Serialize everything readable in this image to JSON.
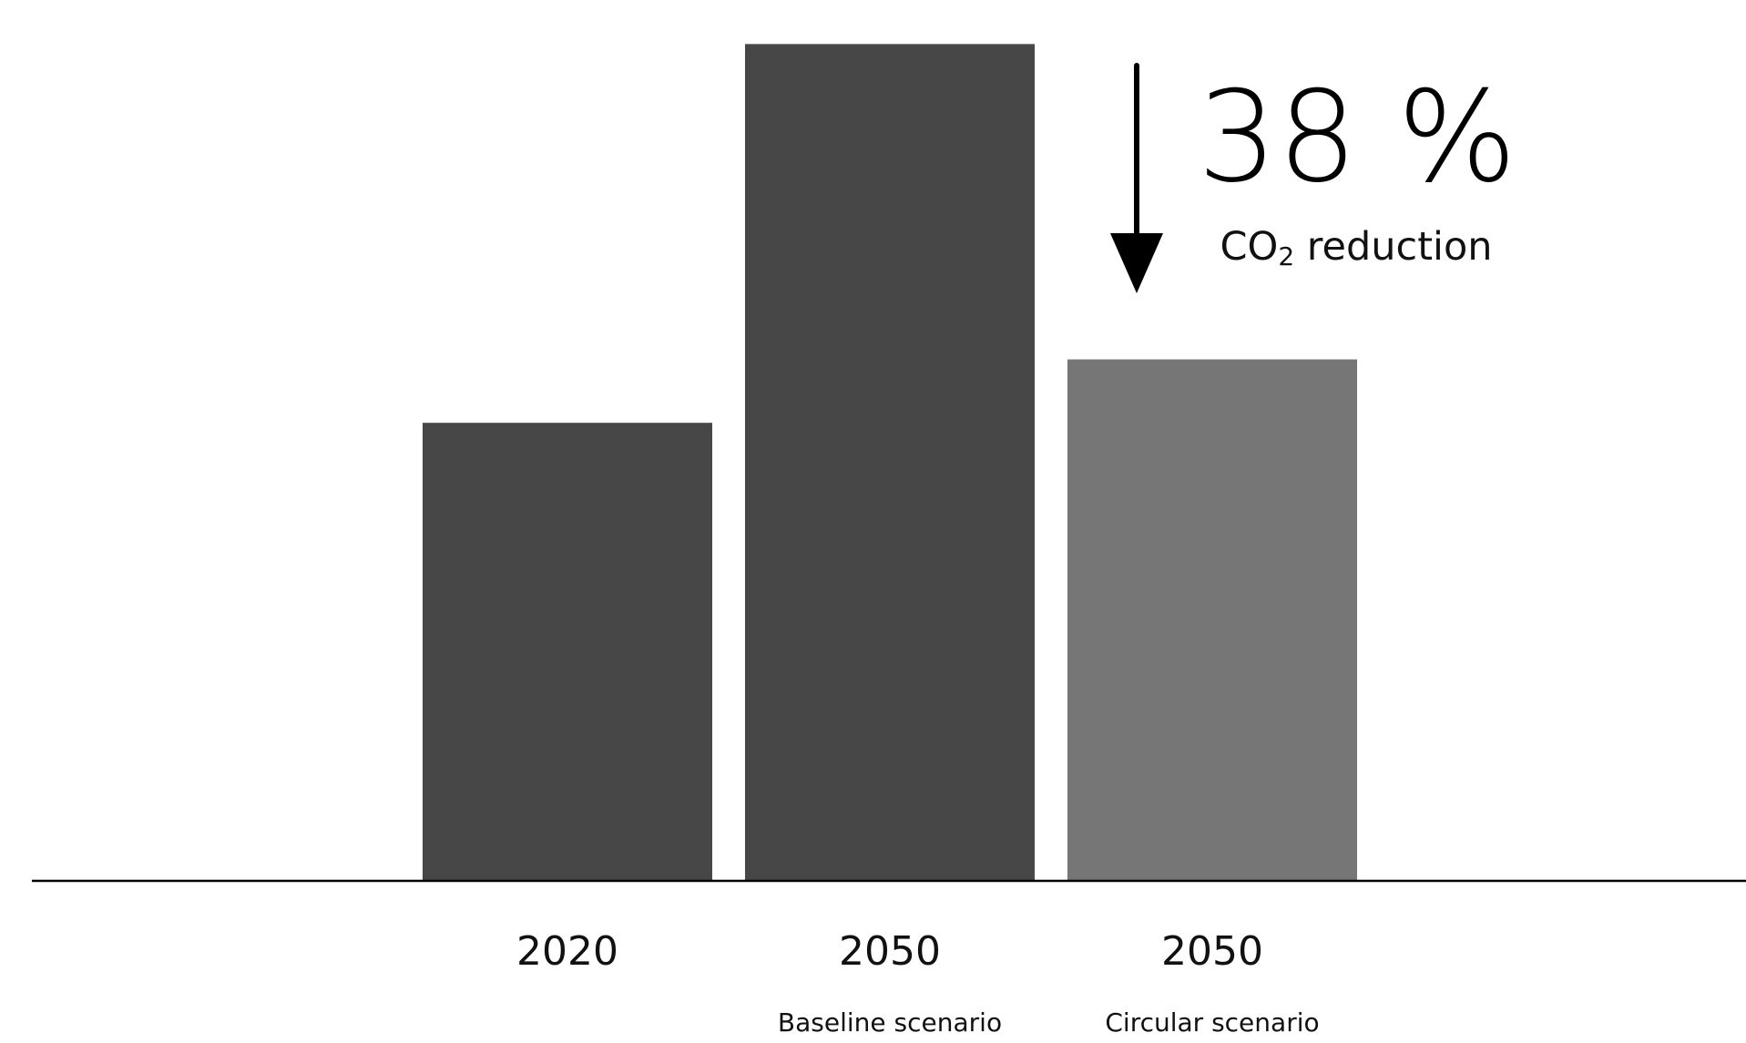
{
  "chart_data": {
    "type": "bar",
    "categories": [
      "2020",
      "2050",
      "2050"
    ],
    "category_sublabels": [
      "",
      "Baseline scenario",
      "Circular scenario"
    ],
    "values": [
      52,
      95,
      59.2
    ],
    "colors": [
      "#474747",
      "#474747",
      "#767676"
    ],
    "ylim": [
      0,
      100
    ],
    "grid": false,
    "title": "",
    "xlabel": "",
    "ylabel": "",
    "annotation": {
      "value_text": "38 %",
      "label_prefix": "CO",
      "label_subscript": "2",
      "label_suffix": " reduction",
      "arrow": "down",
      "arrow_color": "#000000"
    }
  }
}
